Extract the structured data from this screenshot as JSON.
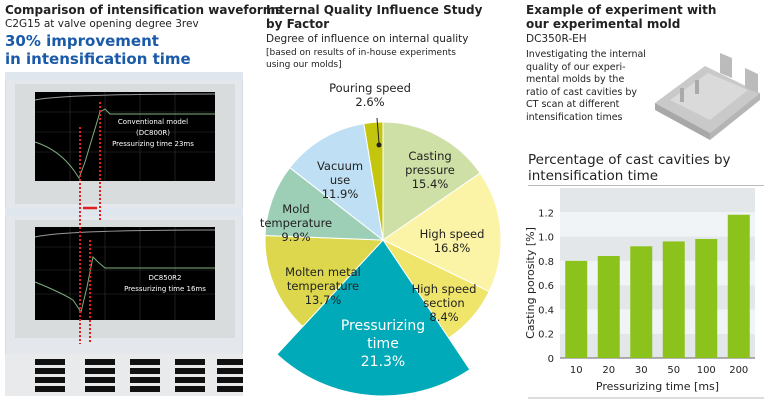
{
  "left": {
    "title": "Comparison of intensification waveforms",
    "subtitle": "C2G15 at valve opening degree 3rev",
    "headline_1": "30% improvement",
    "headline_2": "in intensification time",
    "scope_top_label_1": "Conventional model",
    "scope_top_label_2": "(DC800R)",
    "scope_top_label_3": "Pressurizing time 23ms",
    "scope_bottom_label_1": "DC850R2",
    "scope_bottom_label_2": "Pressurizing time 16ms"
  },
  "middle": {
    "title_1": "Internal Quality Influence Study",
    "title_2": "by Factor",
    "subtitle": "Degree of influence on internal quality",
    "note_1": "[based on results of in-house experiments",
    "note_2": "using our molds]"
  },
  "right": {
    "title_1": "Example of experiment with",
    "title_2": "our experimental mold",
    "model": "DC350R-EH",
    "desc": [
      "Investigating the internal",
      "quality of our experi-",
      "mental molds by the",
      "ratio of cast cavities by",
      "CT scan at different",
      "intensification times"
    ],
    "chart_title_1": "Percentage of cast cavities by",
    "chart_title_2": "intensification time"
  },
  "chart_data": [
    {
      "type": "pie",
      "title": "Internal Quality Influence Study by Factor",
      "slices": [
        {
          "label": [
            "Casting",
            "pressure"
          ],
          "value": 15.4,
          "text": "15.4%",
          "color": "#cfe0a6"
        },
        {
          "label": [
            "High speed"
          ],
          "value": 16.8,
          "text": "16.8%",
          "color": "#fbf4a6"
        },
        {
          "label": [
            "High speed",
            "section"
          ],
          "value": 8.4,
          "text": "8.4%",
          "color": "#efe56a"
        },
        {
          "label": [
            "Pressurizing",
            "time"
          ],
          "value": 21.3,
          "text": "21.3%",
          "color": "#00aab8",
          "exploded": true
        },
        {
          "label": [
            "Molten metal",
            "temperature"
          ],
          "value": 13.7,
          "text": "13.7%",
          "color": "#dcd74c"
        },
        {
          "label": [
            "Mold",
            "temperature"
          ],
          "value": 9.9,
          "text": "9.9%",
          "color": "#9ccfb6"
        },
        {
          "label": [
            "Vacuum",
            "use"
          ],
          "value": 11.9,
          "text": "11.9%",
          "color": "#bfe0f4"
        },
        {
          "label": [
            "Pouring speed"
          ],
          "value": 2.6,
          "text": "2.6%",
          "color": "#c3c60c"
        }
      ]
    },
    {
      "type": "bar",
      "title": "Percentage of cast cavities by intensification time",
      "categories": [
        "10",
        "20",
        "30",
        "50",
        "100",
        "200"
      ],
      "values": [
        0.8,
        0.84,
        0.92,
        0.96,
        0.98,
        1.18
      ],
      "xlabel": "Pressurizing time [ms]",
      "ylabel": "Casting porosity [%]",
      "ylim": [
        0,
        1.4
      ],
      "yticks": [
        "0",
        "0.2",
        "0.4",
        "0.6",
        "0.8",
        "1.0",
        "1.2"
      ],
      "bar_color": "#8cc21c"
    }
  ]
}
